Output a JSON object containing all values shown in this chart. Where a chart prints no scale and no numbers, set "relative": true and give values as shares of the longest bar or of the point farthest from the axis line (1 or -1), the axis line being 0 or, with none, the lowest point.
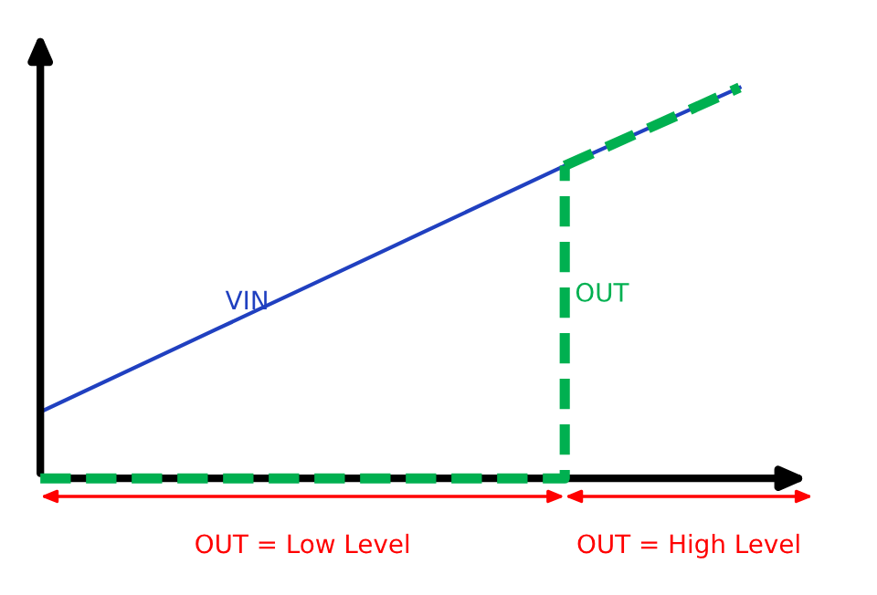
{
  "chart_data": {
    "type": "line",
    "relative": true,
    "categories": [
      null,
      null,
      null,
      null,
      null
    ],
    "series": [
      {
        "name": "VIN",
        "color": "#2040c0",
        "values": [
          0.17,
          0.38,
          0.59,
          0.8,
          1.0
        ],
        "line_style": "solid"
      },
      {
        "name": "OUT",
        "type": "step",
        "color": "#00b050",
        "values": [
          0,
          0,
          0,
          0.8,
          null
        ],
        "line_style": "dashed"
      },
      {
        "color": "#00b050",
        "values": [
          null,
          null,
          null,
          0.8,
          1.0
        ],
        "line_style": "dashed"
      }
    ],
    "annotations": [
      "OUT = Low Level",
      "OUT = High Level"
    ]
  }
}
